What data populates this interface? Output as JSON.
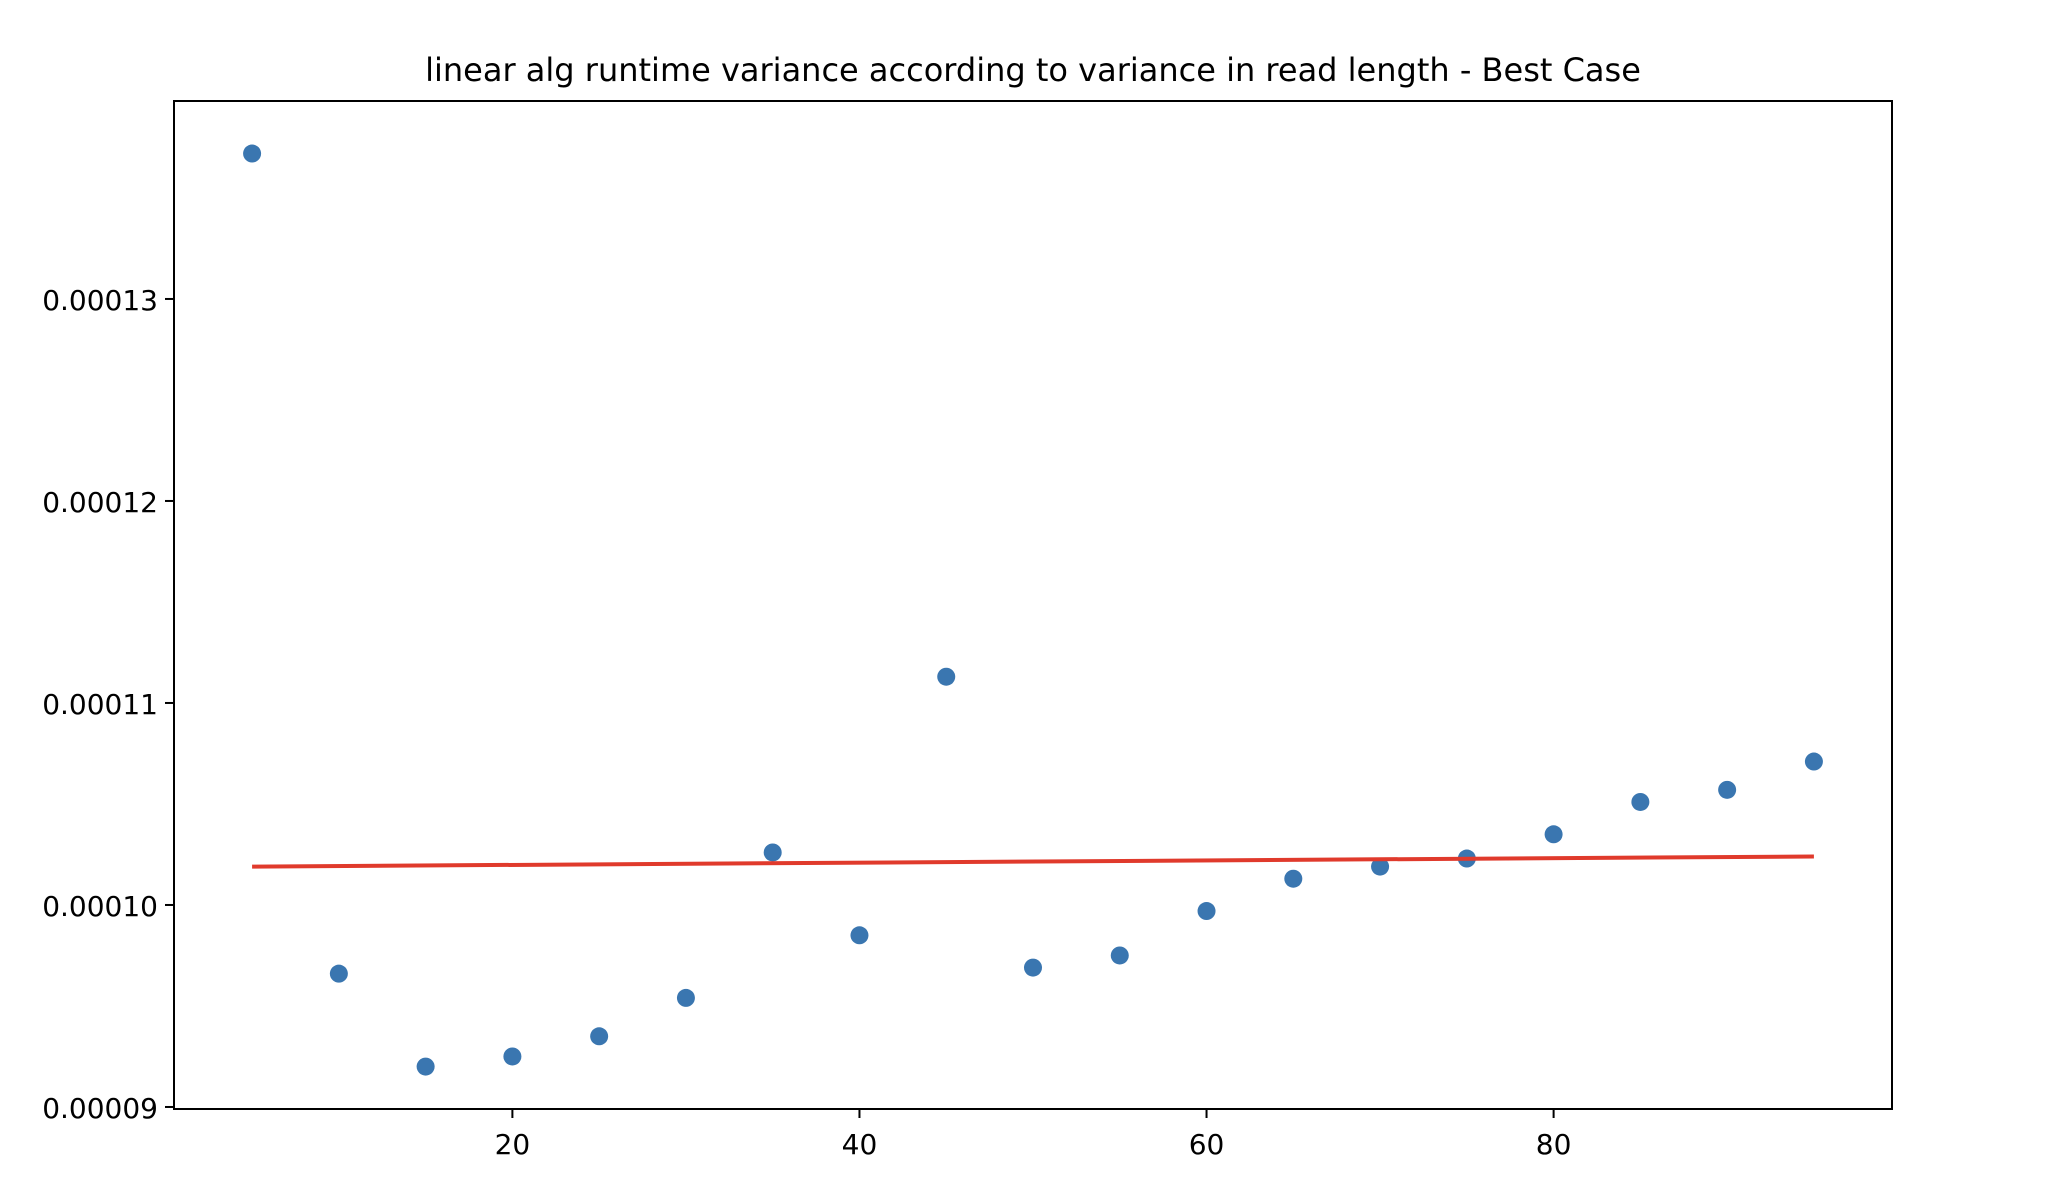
{
  "chart_data": {
    "type": "scatter",
    "title": "linear alg runtime variance according to variance in read length - Best Case",
    "xlabel": "",
    "ylabel": "",
    "xlim": [
      0.5,
      99.5
    ],
    "ylim": [
      8.99e-05,
      0.0001398
    ],
    "grid": false,
    "x_ticks": [
      {
        "value": 20,
        "label": "20"
      },
      {
        "value": 40,
        "label": "40"
      },
      {
        "value": 60,
        "label": "60"
      },
      {
        "value": 80,
        "label": "80"
      }
    ],
    "y_ticks": [
      {
        "value": 9e-05,
        "label": "0.00009"
      },
      {
        "value": 0.0001,
        "label": "0.00010"
      },
      {
        "value": 0.00011,
        "label": "0.00011"
      },
      {
        "value": 0.00012,
        "label": "0.00012"
      },
      {
        "value": 0.00013,
        "label": "0.00013"
      }
    ],
    "series": [
      {
        "type": "scatter",
        "color": "#3a76b0",
        "x": [
          5,
          10,
          15,
          20,
          25,
          30,
          35,
          40,
          45,
          50,
          55,
          60,
          65,
          70,
          75,
          80,
          85,
          90,
          95
        ],
        "y": [
          0.0001372,
          9.66e-05,
          9.2e-05,
          9.25e-05,
          9.35e-05,
          9.54e-05,
          0.0001026,
          9.85e-05,
          0.0001113,
          9.69e-05,
          9.75e-05,
          9.97e-05,
          0.0001013,
          0.0001019,
          0.0001023,
          0.0001035,
          0.0001051,
          0.0001057,
          0.0001071
        ]
      },
      {
        "type": "line",
        "color": "#e03a2c",
        "x": [
          5,
          95
        ],
        "y": [
          0.0001019,
          0.0001024
        ]
      }
    ]
  }
}
